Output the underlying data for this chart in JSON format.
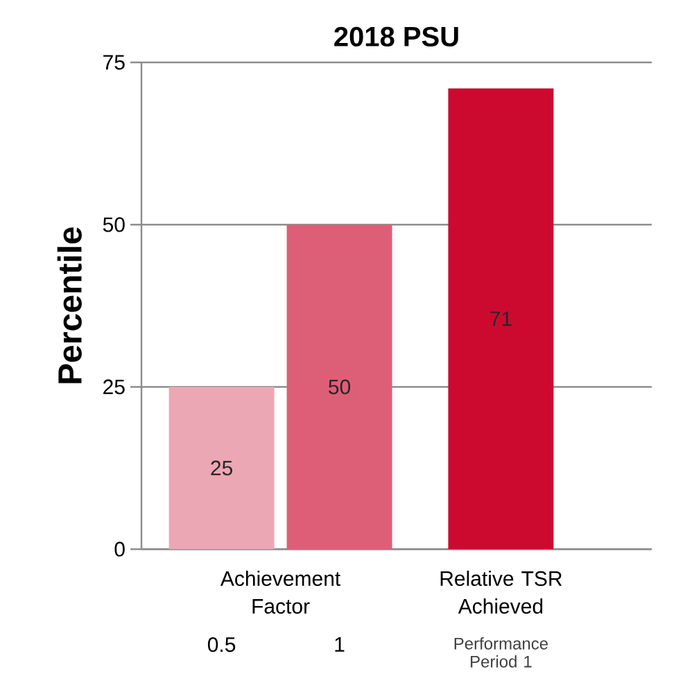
{
  "chart_data": {
    "type": "bar",
    "title": "2018 PSU",
    "ylabel": "Percentile",
    "categories": [
      "0.5",
      "1",
      "Relative TSR Achieved"
    ],
    "values": [
      25,
      50,
      71
    ],
    "colors": [
      "#eba7b4",
      "#dd5f77",
      "#cc0a30"
    ],
    "ylim": [
      0,
      75
    ],
    "yticks": [
      0,
      25,
      50,
      75
    ],
    "grid": "y",
    "data_labels": true,
    "annotations": [
      "Achievement Factor",
      "Performance Period 1"
    ]
  }
}
